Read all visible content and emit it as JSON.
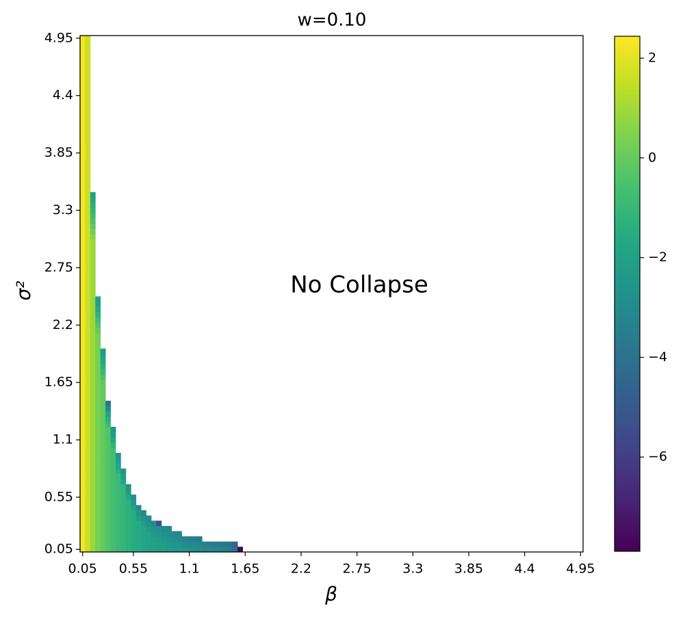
{
  "chart_data": {
    "type": "heatmap",
    "title": "w=0.10",
    "annotation": "No Collapse",
    "x_label": "β",
    "y_label": "σ²",
    "colormap": "viridis",
    "xlim": [
      0.025,
      4.975
    ],
    "ylim": [
      0.025,
      4.975
    ],
    "clim": [
      -7.89,
      2.44
    ],
    "xticks": [
      0.05,
      0.55,
      1.1,
      1.65,
      2.2,
      2.75,
      3.3,
      3.85,
      4.4,
      4.95
    ],
    "yticks": [
      0.05,
      0.55,
      1.1,
      1.65,
      2.2,
      2.75,
      3.3,
      3.85,
      4.4,
      4.95
    ],
    "cbar_ticks": [
      2,
      0,
      {
        "value": -2,
        "label": "−2"
      },
      {
        "value": -4,
        "label": "−4"
      },
      {
        "value": -6,
        "label": "−6"
      }
    ],
    "y": [
      0.05,
      0.1,
      0.15,
      0.2,
      0.25,
      0.3,
      0.35,
      0.4,
      0.45,
      0.5,
      0.55,
      0.6,
      0.65,
      0.7,
      0.75,
      0.8,
      0.85,
      0.9,
      0.95,
      1,
      1.05,
      1.1,
      1.15,
      1.2,
      1.25,
      1.3,
      1.35,
      1.4,
      1.45,
      1.5,
      1.55,
      1.6,
      1.65,
      1.7,
      1.75,
      1.8,
      1.85,
      1.9,
      1.95,
      2,
      2.05,
      2.1,
      2.15,
      2.2,
      2.25,
      2.3,
      2.35,
      2.4,
      2.45,
      2.5,
      2.55,
      2.6,
      2.65,
      2.7,
      2.75,
      2.8,
      2.85,
      2.9,
      2.95,
      3,
      3.05,
      3.1,
      3.15,
      3.2,
      3.25,
      3.3,
      3.35,
      3.4,
      3.45,
      3.5,
      3.55,
      3.6,
      3.65,
      3.7,
      3.75,
      3.8,
      3.85,
      3.9,
      3.95,
      4,
      4.05,
      4.1,
      4.15,
      4.2,
      4.25,
      4.3,
      4.35,
      4.4,
      4.45,
      4.5,
      4.55,
      4.6,
      4.65,
      4.7,
      4.75,
      4.8,
      4.85,
      4.9,
      4.95
    ],
    "columns": [
      {
        "x": 0.05,
        "values": [
          2.3,
          2.3,
          2.3,
          2.3,
          2.3,
          2.3,
          2.3,
          2.3,
          2.3,
          2.3,
          2.3,
          2.3,
          2.3,
          2.3,
          2.3,
          2.3,
          2.3,
          2.3,
          2.3,
          2.3,
          2.3,
          2.3,
          2.3,
          2.3,
          2.3,
          2.3,
          2.3,
          2.3,
          2.3,
          2.3,
          2.3,
          2.3,
          2.3,
          2.3,
          2.3,
          2.3,
          2.3,
          2.3,
          2.3,
          2.3,
          2.3,
          2.3,
          2.3,
          2.3,
          2.3,
          2.3,
          2.3,
          2.3,
          2.3,
          2.3,
          2.3,
          2.3,
          2.3,
          2.3,
          2.3,
          2.3,
          2.3,
          2.3,
          2.3,
          2.3,
          2.3,
          2.3,
          2.3,
          2.3,
          2.3,
          2.3,
          2.3,
          2.3,
          2.3,
          2.3,
          2.3,
          2.3,
          2.3,
          2.3,
          2.3,
          2.3,
          2.3,
          2.3,
          2.3,
          2.3,
          2.3,
          2.3,
          2.3,
          2.3,
          2.3,
          2.3,
          2.3,
          2.3,
          2.3,
          2.3,
          2.3,
          2.3,
          2.3,
          2.3,
          2.3,
          2.3,
          2.3,
          2.3,
          2.3
        ]
      },
      {
        "x": 0.1,
        "values": [
          1.6,
          1.6,
          1.6,
          1.6,
          1.6,
          1.6,
          1.6,
          1.6,
          1.6,
          1.6,
          1.6,
          1.6,
          1.6,
          1.6,
          1.6,
          1.6,
          1.6,
          1.6,
          1.6,
          1.6,
          1.6,
          1.6,
          1.6,
          1.6,
          1.6,
          1.6,
          1.6,
          1.6,
          1.6,
          1.6,
          1.6,
          1.6,
          1.6,
          1.6,
          1.6,
          1.6,
          1.6,
          1.6,
          1.6,
          1.6,
          1.6,
          1.6,
          1.6,
          1.6,
          1.6,
          1.6,
          1.6,
          1.6,
          1.6,
          1.6,
          1.6,
          1.6,
          1.6,
          1.6,
          1.6,
          1.6,
          1.6,
          1.6,
          1.6,
          1.6,
          1.6,
          1.6,
          1.6,
          1.6,
          1.6,
          1.6,
          1.6,
          1.6,
          1.6,
          1.6,
          1.6,
          1.6,
          1.6,
          1.6,
          1.6,
          1.6,
          1.6,
          1.6,
          1.6,
          1.6,
          1.6,
          1.6,
          1.6,
          1.6,
          1.6,
          1.6,
          1.6,
          1.6,
          1.6,
          1.6,
          1.6,
          1.6,
          1.6,
          1.6,
          1.6,
          1.6,
          1.6,
          1.6,
          1.6
        ]
      },
      {
        "x": 0.15,
        "values": [
          0.9,
          0.9,
          0.9,
          0.9,
          0.9,
          0.9,
          0.9,
          0.9,
          0.9,
          0.9,
          0.9,
          0.9,
          0.9,
          0.9,
          0.9,
          0.9,
          0.9,
          0.9,
          0.9,
          0.9,
          0.9,
          0.9,
          0.9,
          0.9,
          0.9,
          0.9,
          0.9,
          0.9,
          0.9,
          0.9,
          0.9,
          0.9,
          0.9,
          0.9,
          0.9,
          0.9,
          0.9,
          0.9,
          0.9,
          0.9,
          0.9,
          0.9,
          0.9,
          0.9,
          0.9,
          0.9,
          0.9,
          0.9,
          0.9,
          0.9,
          0.9,
          0.9,
          0.9,
          0.9,
          0.9,
          0.9,
          0.9,
          0.9,
          0.9,
          0.9,
          0.5,
          0.2,
          -0.2,
          -0.5,
          -0.8,
          -1.1,
          -1.4,
          -1.7,
          -2
        ]
      },
      {
        "x": 0.2,
        "values": [
          0.3,
          0.3,
          0.3,
          0.3,
          0.3,
          0.3,
          0.3,
          0.3,
          0.3,
          0.3,
          0.3,
          0.3,
          0.3,
          0.3,
          0.3,
          0.3,
          0.3,
          0.3,
          0.3,
          0.3,
          0.3,
          0.3,
          0.3,
          0.3,
          0.3,
          0.3,
          0.3,
          0.3,
          0.3,
          0.3,
          0.3,
          0.3,
          0.3,
          0.3,
          0.3,
          0.3,
          0.3,
          0.3,
          0.3,
          0.3,
          0.3,
          0.3,
          0,
          -0.4,
          -0.8,
          -1.2,
          -1.6,
          -2,
          -2.2
        ]
      },
      {
        "x": 0.25,
        "values": [
          -0.1,
          -0.1,
          -0.1,
          -0.1,
          -0.1,
          -0.1,
          -0.1,
          -0.1,
          -0.1,
          -0.1,
          -0.1,
          -0.1,
          -0.1,
          -0.1,
          -0.1,
          -0.1,
          -0.1,
          -0.1,
          -0.1,
          -0.1,
          -0.1,
          -0.1,
          -0.1,
          -0.1,
          -0.1,
          -0.1,
          -0.1,
          -0.1,
          -0.1,
          -0.1,
          -0.1,
          -0.1,
          -0.1,
          -0.5,
          -0.9,
          -1.3,
          -1.7,
          -2,
          -2.3
        ]
      },
      {
        "x": 0.3,
        "values": [
          -0.4,
          -0.4,
          -0.4,
          -0.4,
          -0.4,
          -0.4,
          -0.4,
          -0.4,
          -0.4,
          -0.4,
          -0.4,
          -0.4,
          -0.4,
          -0.4,
          -0.4,
          -0.4,
          -0.4,
          -0.4,
          -0.4,
          -0.4,
          -0.4,
          -0.4,
          -0.4,
          -0.4,
          -0.9,
          -1.4,
          -2,
          -3,
          -4
        ]
      },
      {
        "x": 0.35,
        "values": [
          -0.7,
          -0.7,
          -0.7,
          -0.7,
          -0.7,
          -0.7,
          -0.7,
          -0.7,
          -0.7,
          -0.7,
          -0.7,
          -0.7,
          -0.7,
          -0.7,
          -0.7,
          -0.7,
          -0.7,
          -0.7,
          -0.7,
          -0.7,
          -1.2,
          -1.7,
          -2.1,
          -2.5
        ]
      },
      {
        "x": 0.4,
        "values": [
          -0.9,
          -0.9,
          -0.9,
          -0.9,
          -0.9,
          -0.9,
          -0.9,
          -0.9,
          -0.9,
          -0.9,
          -0.9,
          -0.9,
          -0.9,
          -0.9,
          -0.9,
          -1.4,
          -1.8,
          -2.2,
          -2.6
        ]
      },
      {
        "x": 0.45,
        "values": [
          -1.1,
          -1.1,
          -1.1,
          -1.1,
          -1.1,
          -1.1,
          -1.1,
          -1.1,
          -1.1,
          -1.1,
          -1.1,
          -1.1,
          -1.1,
          -1.7,
          -2.2,
          -2.6
        ]
      },
      {
        "x": 0.5,
        "values": [
          -1.3,
          -1.3,
          -1.3,
          -1.3,
          -1.3,
          -1.3,
          -1.3,
          -1.3,
          -1.3,
          -1.3,
          -1.8,
          -2.3,
          -2.7
        ]
      },
      {
        "x": 0.55,
        "values": [
          -1.5,
          -1.5,
          -1.5,
          -1.5,
          -1.5,
          -1.5,
          -1.5,
          -1.5,
          -2,
          -2.4,
          -2.8
        ]
      },
      {
        "x": 0.6,
        "values": [
          -1.6,
          -1.6,
          -1.6,
          -1.6,
          -1.6,
          -1.6,
          -2.1,
          -2.5,
          -2.9
        ]
      },
      {
        "x": 0.65,
        "values": [
          -1.8,
          -1.8,
          -1.8,
          -1.8,
          -1.8,
          -2.2,
          -2.6,
          -3
        ]
      },
      {
        "x": 0.7,
        "values": [
          -1.9,
          -1.9,
          -1.9,
          -1.9,
          -2.3,
          -2.7,
          -3
        ]
      },
      {
        "x": 0.75,
        "values": [
          -2,
          -2,
          -2.1,
          -2.3,
          -2.6,
          -3
        ]
      },
      {
        "x": 0.8,
        "values": [
          -2.1,
          -2.1,
          -2.2,
          -2.4,
          -2.7,
          -5.2
        ]
      },
      {
        "x": 0.85,
        "values": [
          -2.2,
          -2.2,
          -2.4,
          -2.7,
          -3
        ]
      },
      {
        "x": 0.9,
        "values": [
          -2.3,
          -2.3,
          -2.5,
          -2.8,
          -3.1
        ]
      },
      {
        "x": 0.95,
        "values": [
          -2.4,
          -2.5,
          -2.8,
          -3.1
        ]
      },
      {
        "x": 1,
        "values": [
          -2.5,
          -2.6,
          -2.9,
          -3.2
        ]
      },
      {
        "x": 1.05,
        "values": [
          -2.6,
          -2.9,
          -3.3
        ]
      },
      {
        "x": 1.1,
        "values": [
          -2.7,
          -3,
          -3.4
        ]
      },
      {
        "x": 1.15,
        "values": [
          -2.8,
          -3.1,
          -3.5
        ]
      },
      {
        "x": 1.2,
        "values": [
          -2.9,
          -3.2,
          -3.6
        ]
      },
      {
        "x": 1.25,
        "values": [
          -3,
          -3.4
        ]
      },
      {
        "x": 1.3,
        "values": [
          -3.1,
          -3.5
        ]
      },
      {
        "x": 1.35,
        "values": [
          -3.2,
          -3.6
        ]
      },
      {
        "x": 1.4,
        "values": [
          -3.3,
          -3.7
        ]
      },
      {
        "x": 1.45,
        "values": [
          -3.4,
          -3.8
        ]
      },
      {
        "x": 1.5,
        "values": [
          -3.6,
          -4
        ]
      },
      {
        "x": 1.55,
        "values": [
          -4.2,
          -4.5
        ]
      },
      {
        "x": 1.6,
        "values": [
          -7.8
        ]
      }
    ]
  }
}
